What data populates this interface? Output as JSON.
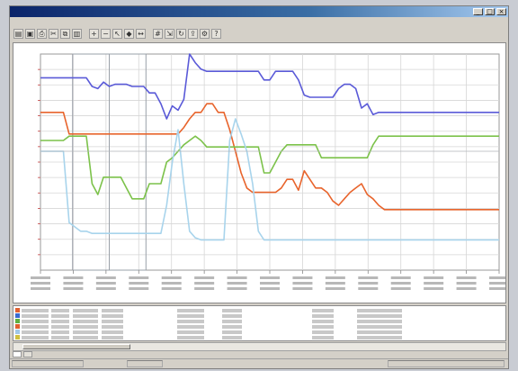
{
  "window": {
    "title": ""
  },
  "menu": [
    "",
    "",
    "",
    "",
    "",
    "",
    ""
  ],
  "toolbar_icons": [
    "open-icon",
    "save-icon",
    "print-icon",
    "cut-icon",
    "copy-icon",
    "paste-icon",
    "zoom-in-icon",
    "zoom-out-icon",
    "cursor-icon",
    "marker-icon",
    "measure-icon",
    "grid-icon",
    "fit-icon",
    "refresh-icon",
    "export-icon",
    "settings-icon",
    "help-icon"
  ],
  "chart_data": {
    "type": "line",
    "title": "",
    "xlabel": "",
    "ylabel": "",
    "grid": true,
    "ylim": [
      0,
      100
    ],
    "x": [
      0,
      1,
      2,
      3,
      4,
      5,
      6,
      7,
      8,
      9,
      10,
      11,
      12,
      13,
      14,
      15,
      16,
      17,
      18,
      19,
      20,
      21,
      22,
      23,
      24,
      25,
      26,
      27,
      28,
      29,
      30,
      31,
      32,
      33,
      34,
      35,
      36,
      37,
      38,
      39,
      40,
      41,
      42,
      43,
      44,
      45,
      46,
      47,
      48,
      49,
      50,
      51,
      52,
      53,
      54,
      55,
      56,
      57,
      58,
      59,
      60,
      61,
      62,
      63,
      64,
      65,
      66,
      67,
      68,
      69,
      70,
      71,
      72,
      73,
      74,
      75,
      76,
      77,
      78,
      79,
      80
    ],
    "series": [
      {
        "color": "#5a5ad8",
        "values": [
          89,
          89,
          89,
          89,
          89,
          89,
          89,
          89,
          89,
          85,
          84,
          87,
          85,
          86,
          86,
          86,
          85,
          85,
          85,
          82,
          82,
          77,
          70,
          76,
          74,
          79,
          100,
          96,
          93,
          92,
          92,
          92,
          92,
          92,
          92,
          92,
          92,
          92,
          92,
          88,
          88,
          92,
          92,
          92,
          92,
          88,
          81,
          80,
          80,
          80,
          80,
          80,
          84,
          86,
          86,
          84,
          75,
          77,
          72,
          73,
          73,
          73,
          73,
          73,
          73,
          73,
          73,
          73,
          73,
          73,
          73,
          73,
          73,
          73,
          73,
          73,
          73,
          73,
          73,
          73,
          73
        ]
      },
      {
        "color": "#e8642c",
        "values": [
          73,
          73,
          73,
          73,
          73,
          63,
          63,
          63,
          63,
          63,
          63,
          63,
          63,
          63,
          63,
          63,
          63,
          63,
          63,
          63,
          63,
          63,
          63,
          63,
          63,
          66,
          70,
          73,
          73,
          77,
          77,
          73,
          73,
          65,
          55,
          45,
          38,
          36,
          36,
          36,
          36,
          36,
          38,
          42,
          42,
          37,
          46,
          42,
          38,
          38,
          36,
          32,
          30,
          33,
          36,
          38,
          40,
          35,
          33,
          30,
          28,
          28,
          28,
          28,
          28,
          28,
          28,
          28,
          28,
          28,
          28,
          28,
          28,
          28,
          28,
          28,
          28,
          28,
          28,
          28,
          28
        ]
      },
      {
        "color": "#7cc24a",
        "values": [
          60,
          60,
          60,
          60,
          60,
          62,
          62,
          62,
          62,
          40,
          35,
          43,
          43,
          43,
          43,
          38,
          33,
          33,
          33,
          40,
          40,
          40,
          50,
          52,
          55,
          58,
          60,
          62,
          60,
          57,
          57,
          57,
          57,
          57,
          57,
          57,
          57,
          57,
          57,
          45,
          45,
          50,
          55,
          58,
          58,
          58,
          58,
          58,
          58,
          52,
          52,
          52,
          52,
          52,
          52,
          52,
          52,
          52,
          58,
          62,
          62,
          62,
          62,
          62,
          62,
          62,
          62,
          62,
          62,
          62,
          62,
          62,
          62,
          62,
          62,
          62,
          62,
          62,
          62,
          62,
          62
        ]
      },
      {
        "color": "#a8d4ec",
        "values": [
          55,
          55,
          55,
          55,
          55,
          22,
          20,
          18,
          18,
          17,
          17,
          17,
          17,
          17,
          17,
          17,
          17,
          17,
          17,
          17,
          17,
          17,
          30,
          50,
          65,
          40,
          18,
          15,
          14,
          14,
          14,
          14,
          14,
          60,
          70,
          63,
          55,
          40,
          18,
          14,
          14,
          14,
          14,
          14,
          14,
          14,
          14,
          14,
          14,
          14,
          14,
          14,
          14,
          14,
          14,
          14,
          14,
          14,
          14,
          14,
          14,
          14,
          14,
          14,
          14,
          14,
          14,
          14,
          14,
          14,
          14,
          14,
          14,
          14,
          14,
          14,
          14,
          14,
          14,
          14,
          14
        ]
      },
      {
        "color": "#b0b4b8",
        "values": [
          55,
          55,
          55,
          55,
          55,
          55,
          55,
          55,
          55,
          55,
          55,
          55,
          55,
          55,
          55,
          55,
          55,
          55,
          55,
          55,
          55,
          55,
          55,
          55,
          55,
          55,
          55,
          55,
          55,
          55,
          55,
          55,
          55,
          55,
          55,
          55,
          55,
          55,
          55,
          55,
          55,
          55,
          55,
          55,
          55,
          55,
          55,
          55,
          55,
          55,
          55,
          55,
          55,
          55,
          55,
          55,
          55,
          55,
          55,
          55,
          55,
          55,
          55,
          55,
          55,
          55,
          55,
          55,
          55,
          55,
          55,
          55,
          55,
          55,
          55,
          55,
          55,
          55,
          55,
          55,
          55
        ]
      }
    ],
    "gridlines_y": 14,
    "gridlines_x": 14
  },
  "legend_rows": [
    {
      "color": "#e06030"
    },
    {
      "color": "#3a6bd0"
    },
    {
      "color": "#60b040"
    },
    {
      "color": "#e06030"
    },
    {
      "color": "#a0c8e8"
    },
    {
      "color": "#d0c040"
    }
  ],
  "tabs": [
    "",
    ""
  ],
  "status": [
    "",
    "",
    ""
  ]
}
